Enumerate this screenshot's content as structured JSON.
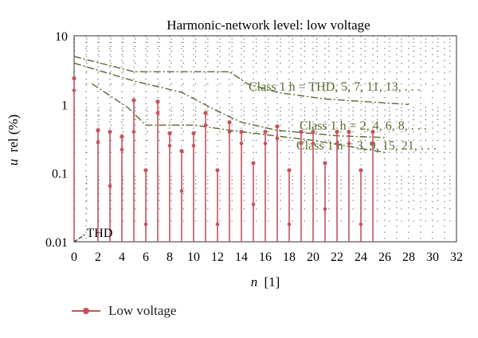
{
  "chart_data": {
    "type": "bar",
    "title": "Harmonic-network level: low voltage",
    "xlabel_italic": "n",
    "xlabel_unit": "[1]",
    "ylabel_italic": "u",
    "ylabel_rest": "rel (%)",
    "y_scale": "log",
    "ylim": [
      0.01,
      10
    ],
    "xlim": [
      0,
      32
    ],
    "x_ticks": [
      "0",
      "2",
      "4",
      "6",
      "8",
      "10",
      "12",
      "14",
      "16",
      "18",
      "20",
      "22",
      "24",
      "26",
      "28",
      "30",
      "32"
    ],
    "y_ticks": [
      "0.01",
      "0.1",
      "1",
      "10"
    ],
    "grid": "dotted",
    "legend_position": "bottom-left",
    "colors": {
      "series": "#c9525a",
      "limits": "#556b2f",
      "grid": "#555555"
    },
    "series": [
      {
        "name": "Low voltage",
        "points": [
          {
            "n": 0,
            "max": 2.4,
            "min": 1.6
          },
          {
            "n": 2,
            "max": 0.42,
            "min": 0.28
          },
          {
            "n": 3,
            "max": 0.4,
            "min": 0.065
          },
          {
            "n": 4,
            "max": 0.34,
            "min": 0.22
          },
          {
            "n": 5,
            "max": 1.15,
            "min": 0.4
          },
          {
            "n": 6,
            "max": 0.11,
            "min": 0.018
          },
          {
            "n": 7,
            "max": 1.1,
            "min": 0.75
          },
          {
            "n": 8,
            "max": 0.38,
            "min": 0.25
          },
          {
            "n": 9,
            "max": 0.21,
            "min": 0.055
          },
          {
            "n": 10,
            "max": 0.38,
            "min": 0.25
          },
          {
            "n": 11,
            "max": 0.75,
            "min": 0.5
          },
          {
            "n": 12,
            "max": 0.11,
            "min": 0.018
          },
          {
            "n": 13,
            "max": 0.55,
            "min": 0.4
          },
          {
            "n": 14,
            "max": 0.4,
            "min": 0.27
          },
          {
            "n": 15,
            "max": 0.14,
            "min": 0.035
          },
          {
            "n": 16,
            "max": 0.4,
            "min": 0.27
          },
          {
            "n": 17,
            "max": 0.48,
            "min": 0.32
          },
          {
            "n": 18,
            "max": 0.11,
            "min": 0.018
          },
          {
            "n": 19,
            "max": 0.4,
            "min": 0.27
          },
          {
            "n": 20,
            "max": 0.4,
            "min": 0.27
          },
          {
            "n": 21,
            "max": 0.14,
            "min": 0.03
          },
          {
            "n": 22,
            "max": 0.4,
            "min": 0.27
          },
          {
            "n": 23,
            "max": 0.4,
            "min": 0.27
          },
          {
            "n": 24,
            "max": 0.11,
            "min": 0.018
          },
          {
            "n": 25,
            "max": 0.4,
            "min": 0.27
          }
        ]
      }
    ],
    "limit_curves": [
      {
        "label": "Class 1 h = THD, 5, 7, 11, 13, . . .",
        "points": [
          [
            0,
            5
          ],
          [
            5,
            3
          ],
          [
            13,
            3
          ],
          [
            14.5,
            2
          ],
          [
            17,
            1.5
          ],
          [
            21,
            1.2
          ],
          [
            28,
            1
          ]
        ]
      },
      {
        "label": "Class 1 h = 2, 4, 6, 8, . . .",
        "points": [
          [
            0,
            4
          ],
          [
            5,
            2.2
          ],
          [
            9,
            1.5
          ],
          [
            12,
            0.8
          ],
          [
            14,
            0.55
          ],
          [
            17,
            0.42
          ],
          [
            22,
            0.35
          ],
          [
            26,
            0.33
          ]
        ]
      },
      {
        "label": "Class 1 h = 3, 9, 15, 21, . . .",
        "points": [
          [
            1.5,
            2
          ],
          [
            4.5,
            0.9
          ],
          [
            6,
            0.5
          ],
          [
            10,
            0.5
          ],
          [
            14,
            0.4
          ],
          [
            20,
            0.3
          ],
          [
            26,
            0.2
          ]
        ]
      }
    ],
    "annotations": [
      {
        "text": "THD",
        "x": 0.5,
        "y": 0.012
      }
    ]
  }
}
